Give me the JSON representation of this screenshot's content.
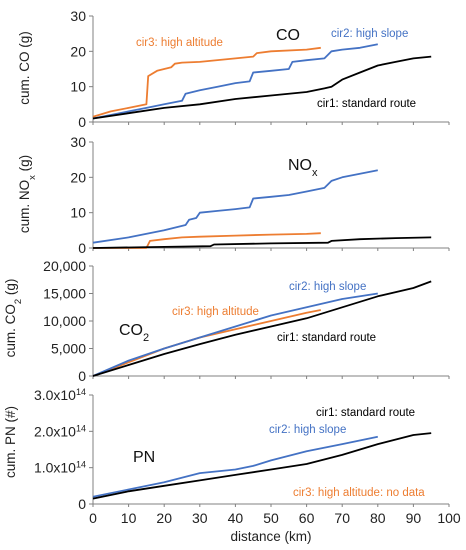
{
  "colors": {
    "cir1": "#000000",
    "cir2": "#4472C4",
    "cir3": "#ED7D31",
    "axis": "#808080"
  },
  "chart_data": [
    {
      "type": "line",
      "ylabel": "cum. CO (g)",
      "ylim": [
        0,
        30
      ],
      "yticks": [
        0,
        10,
        20,
        30
      ],
      "tick_labels": [
        "0",
        "10",
        "20",
        "30"
      ],
      "xlim": [
        0,
        100
      ],
      "xticks": [],
      "annotations": [
        {
          "text": "CO",
          "color": "#111111"
        },
        {
          "text": "cir3: high altitude",
          "color": "#ED7D31"
        },
        {
          "text": "cir2: high slope",
          "color": "#4472C4"
        },
        {
          "text": "cir1: standard route",
          "color": "#000000"
        }
      ],
      "series": [
        {
          "key": "cir3",
          "points": [
            [
              0,
              1.5
            ],
            [
              5,
              3
            ],
            [
              10,
              4
            ],
            [
              15,
              5
            ],
            [
              15.5,
              13
            ],
            [
              18,
              14.5
            ],
            [
              20,
              15
            ],
            [
              22,
              15.5
            ],
            [
              23,
              16.5
            ],
            [
              25,
              16.8
            ],
            [
              30,
              17
            ],
            [
              40,
              18
            ],
            [
              45,
              18.5
            ],
            [
              46,
              19.5
            ],
            [
              50,
              20
            ],
            [
              60,
              20.5
            ],
            [
              64,
              21
            ]
          ]
        },
        {
          "key": "cir2",
          "points": [
            [
              0,
              1
            ],
            [
              10,
              3
            ],
            [
              15,
              4
            ],
            [
              20,
              5
            ],
            [
              25,
              6
            ],
            [
              26,
              8
            ],
            [
              28,
              8.5
            ],
            [
              30,
              9
            ],
            [
              35,
              10
            ],
            [
              40,
              11
            ],
            [
              44,
              11.5
            ],
            [
              45,
              14
            ],
            [
              50,
              14.5
            ],
            [
              55,
              15
            ],
            [
              56,
              17
            ],
            [
              60,
              17.5
            ],
            [
              65,
              18
            ],
            [
              67,
              20
            ],
            [
              70,
              20.5
            ],
            [
              75,
              21
            ],
            [
              80,
              22
            ]
          ]
        },
        {
          "key": "cir1",
          "points": [
            [
              0,
              1
            ],
            [
              10,
              2.5
            ],
            [
              20,
              4
            ],
            [
              30,
              5
            ],
            [
              40,
              6.5
            ],
            [
              50,
              7.5
            ],
            [
              60,
              8.5
            ],
            [
              65,
              9.5
            ],
            [
              67,
              10
            ],
            [
              70,
              12
            ],
            [
              75,
              14
            ],
            [
              80,
              16
            ],
            [
              85,
              17
            ],
            [
              90,
              18
            ],
            [
              95,
              18.5
            ]
          ]
        }
      ]
    },
    {
      "type": "line",
      "ylabel_prefix": "cum. NO",
      "ylabel_sub": "x",
      "ylabel_suffix": " (g)",
      "ylim": [
        0,
        30
      ],
      "yticks": [
        0,
        10,
        20,
        30
      ],
      "tick_labels": [
        "0",
        "10",
        "20",
        "30"
      ],
      "xlim": [
        0,
        100
      ],
      "xticks": [],
      "annotations": [
        {
          "text": "NO",
          "sub": "x",
          "color": "#111111"
        }
      ],
      "series": [
        {
          "key": "cir2",
          "points": [
            [
              0,
              1.5
            ],
            [
              10,
              3
            ],
            [
              20,
              5
            ],
            [
              26,
              6.5
            ],
            [
              27,
              8
            ],
            [
              29,
              8.5
            ],
            [
              30,
              10
            ],
            [
              35,
              10.5
            ],
            [
              40,
              11
            ],
            [
              44,
              11.5
            ],
            [
              45,
              14
            ],
            [
              50,
              14.5
            ],
            [
              55,
              15
            ],
            [
              60,
              16
            ],
            [
              65,
              17
            ],
            [
              67,
              19
            ],
            [
              70,
              20
            ],
            [
              75,
              21
            ],
            [
              80,
              22
            ]
          ]
        },
        {
          "key": "cir3",
          "points": [
            [
              0,
              0
            ],
            [
              15,
              0
            ],
            [
              16,
              2
            ],
            [
              20,
              2.5
            ],
            [
              25,
              3
            ],
            [
              30,
              3.2
            ],
            [
              40,
              3.5
            ],
            [
              50,
              3.8
            ],
            [
              60,
              4
            ],
            [
              64,
              4.2
            ]
          ]
        },
        {
          "key": "cir1",
          "points": [
            [
              0,
              0
            ],
            [
              20,
              0.3
            ],
            [
              33,
              0.5
            ],
            [
              34,
              1
            ],
            [
              50,
              1.3
            ],
            [
              66,
              1.5
            ],
            [
              67,
              2
            ],
            [
              75,
              2.5
            ],
            [
              85,
              2.8
            ],
            [
              95,
              3
            ]
          ]
        }
      ]
    },
    {
      "type": "line",
      "ylabel_prefix": "cum. CO",
      "ylabel_sub": "2",
      "ylabel_suffix": " (g)",
      "ylim": [
        0,
        20000
      ],
      "yticks": [
        0,
        5000,
        10000,
        15000,
        20000
      ],
      "tick_labels": [
        "0",
        "5,000",
        "10,000",
        "15,000",
        "20,000"
      ],
      "xlim": [
        0,
        100
      ],
      "xticks": [],
      "annotations": [
        {
          "text": "CO",
          "sub": "2",
          "color": "#111111"
        },
        {
          "text": "cir3: high altitude",
          "color": "#ED7D31"
        },
        {
          "text": "cir2: high slope",
          "color": "#4472C4"
        },
        {
          "text": "cir1: standard route",
          "color": "#000000"
        }
      ],
      "series": [
        {
          "key": "cir3",
          "points": [
            [
              0,
              0
            ],
            [
              10,
              2500
            ],
            [
              20,
              5000
            ],
            [
              30,
              7000
            ],
            [
              40,
              8500
            ],
            [
              50,
              10000
            ],
            [
              60,
              11500
            ],
            [
              64,
              12000
            ]
          ]
        },
        {
          "key": "cir2",
          "points": [
            [
              0,
              0
            ],
            [
              10,
              2800
            ],
            [
              20,
              5000
            ],
            [
              30,
              7000
            ],
            [
              40,
              9000
            ],
            [
              50,
              11000
            ],
            [
              60,
              12500
            ],
            [
              70,
              14000
            ],
            [
              80,
              15000
            ]
          ]
        },
        {
          "key": "cir1",
          "points": [
            [
              0,
              0
            ],
            [
              10,
              2000
            ],
            [
              20,
              4000
            ],
            [
              30,
              5800
            ],
            [
              40,
              7500
            ],
            [
              50,
              9000
            ],
            [
              60,
              10500
            ],
            [
              70,
              12500
            ],
            [
              80,
              14500
            ],
            [
              90,
              16000
            ],
            [
              95,
              17200
            ]
          ]
        }
      ]
    },
    {
      "type": "line",
      "ylabel": "cum. PN (#)",
      "ylim": [
        0,
        3
      ],
      "yticks": [
        0,
        1,
        2,
        3
      ],
      "tick_labels": [
        {
          "base": "0",
          "exp": ""
        },
        {
          "base": "1.0x10",
          "exp": "14"
        },
        {
          "base": "2.0x10",
          "exp": "14"
        },
        {
          "base": "3.0x10",
          "exp": "14"
        }
      ],
      "xlim": [
        0,
        100
      ],
      "xticks": [
        0,
        10,
        20,
        30,
        40,
        50,
        60,
        70,
        80,
        90,
        100
      ],
      "xtick_labels": [
        "0",
        "10",
        "20",
        "30",
        "40",
        "50",
        "60",
        "70",
        "80",
        "90",
        "100"
      ],
      "xlabel": "distance (km)",
      "annotations": [
        {
          "text": "PN",
          "color": "#111111"
        },
        {
          "text": "cir1: standard route",
          "color": "#000000"
        },
        {
          "text": "cir2: high slope",
          "color": "#4472C4"
        },
        {
          "text": "cir3: high altitude: no data",
          "color": "#ED7D31"
        }
      ],
      "series": [
        {
          "key": "cir2",
          "points": [
            [
              0,
              0.2
            ],
            [
              10,
              0.4
            ],
            [
              20,
              0.6
            ],
            [
              30,
              0.85
            ],
            [
              40,
              0.95
            ],
            [
              45,
              1.05
            ],
            [
              50,
              1.2
            ],
            [
              60,
              1.45
            ],
            [
              70,
              1.65
            ],
            [
              80,
              1.85
            ]
          ]
        },
        {
          "key": "cir1",
          "points": [
            [
              0,
              0.15
            ],
            [
              10,
              0.35
            ],
            [
              20,
              0.5
            ],
            [
              30,
              0.65
            ],
            [
              40,
              0.8
            ],
            [
              50,
              0.95
            ],
            [
              60,
              1.1
            ],
            [
              70,
              1.35
            ],
            [
              80,
              1.65
            ],
            [
              90,
              1.9
            ],
            [
              95,
              1.95
            ]
          ]
        }
      ]
    }
  ]
}
